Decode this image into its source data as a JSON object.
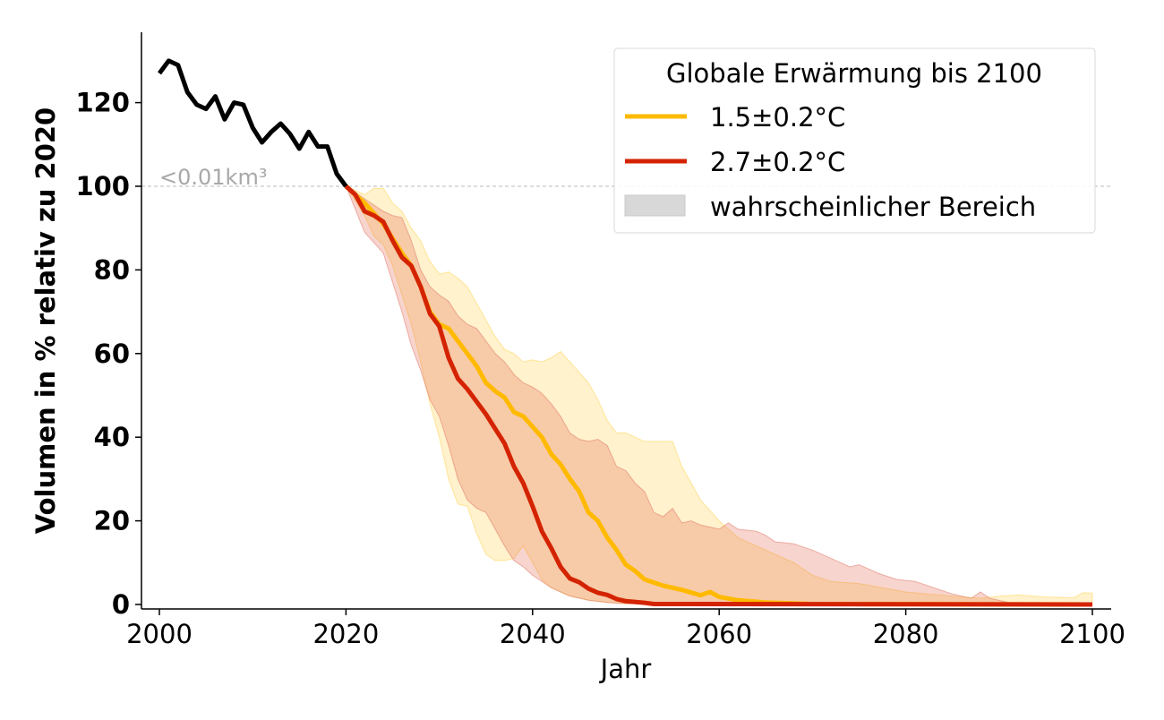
{
  "chart_data": {
    "type": "line",
    "title": "",
    "xlabel": "Jahr",
    "ylabel": "Volumen in % relativ zu 2020",
    "xlim": [
      1998,
      2102
    ],
    "ylim": [
      -1,
      137
    ],
    "xticks": [
      2000,
      2020,
      2040,
      2060,
      2080,
      2100
    ],
    "yticks": [
      0,
      20,
      40,
      60,
      80,
      100,
      120
    ],
    "grid": false,
    "legend": {
      "title": "Globale Erwärmung bis 2100",
      "placement": "top-right",
      "entries": [
        "1.5±0.2°C",
        "2.7±0.2°C",
        "wahrscheinlicher Bereich"
      ]
    },
    "reference_line": {
      "y": 100,
      "label": "<0.01km³",
      "color": "#aaaaaa"
    },
    "colors": {
      "historical": "#000000",
      "s15": "#FFBA00",
      "s27": "#D42300",
      "range": "#d8d8d8"
    },
    "historical": {
      "x": [
        2000,
        2001,
        2002,
        2003,
        2004,
        2005,
        2006,
        2007,
        2008,
        2009,
        2010,
        2011,
        2012,
        2013,
        2014,
        2015,
        2016,
        2017,
        2018,
        2019,
        2020
      ],
      "y": [
        127,
        130,
        129,
        122.5,
        119.5,
        118.5,
        121.5,
        116,
        120,
        119.5,
        114,
        110.5,
        113,
        115,
        112.5,
        109,
        113,
        109.5,
        109.5,
        103,
        100
      ]
    },
    "series": [
      {
        "name": "1.5±0.2°C",
        "median": {
          "x": [
            2020,
            2022,
            2024,
            2026,
            2027,
            2028,
            2029,
            2030,
            2031,
            2032,
            2034,
            2035,
            2036,
            2037,
            2038,
            2039,
            2040,
            2041,
            2042,
            2043,
            2044,
            2045,
            2046,
            2047,
            2048,
            2049,
            2050,
            2051,
            2052,
            2054,
            2056,
            2058,
            2059,
            2060,
            2062,
            2065,
            2070,
            2100
          ],
          "y": [
            100,
            96,
            91,
            84,
            81,
            76,
            70,
            67,
            66,
            63,
            57,
            53,
            51,
            49.5,
            46,
            45,
            42.5,
            40,
            36,
            33.5,
            30,
            27,
            22,
            20,
            16,
            13,
            9.5,
            8,
            6,
            4.5,
            3.5,
            2.2,
            3,
            1.8,
            1,
            0.5,
            0.1,
            0
          ]
        },
        "upper": {
          "x": [
            2020,
            2022,
            2023,
            2024,
            2025,
            2026,
            2027,
            2028,
            2029,
            2030,
            2031,
            2032,
            2033,
            2034,
            2035,
            2036,
            2037,
            2038,
            2039,
            2040,
            2041,
            2042,
            2043,
            2044,
            2045,
            2046,
            2047,
            2048,
            2049,
            2050,
            2051,
            2052,
            2053,
            2055,
            2056,
            2058,
            2060,
            2062,
            2064,
            2066,
            2068,
            2070,
            2072,
            2075,
            2080,
            2085,
            2088,
            2090,
            2092,
            2095,
            2098,
            2099,
            2100
          ],
          "y": [
            100,
            98,
            99.5,
            99.5,
            96,
            94,
            90,
            87,
            82,
            79,
            79.5,
            78,
            76,
            72,
            68,
            64,
            61,
            60,
            58,
            58.5,
            58,
            59,
            60.5,
            58,
            55.5,
            53,
            49,
            44,
            41,
            41,
            40,
            39,
            39,
            39,
            33,
            25,
            20,
            16,
            14,
            12,
            10,
            7,
            5.5,
            5,
            3,
            2,
            1.5,
            2,
            2.3,
            1.8,
            1.6,
            2.8,
            2.7
          ]
        },
        "lower": {
          "x": [
            2020,
            2022,
            2023,
            2024,
            2025,
            2026,
            2027,
            2028,
            2029,
            2030,
            2031,
            2032,
            2033,
            2034,
            2035,
            2036,
            2037,
            2038,
            2039,
            2040,
            2041,
            2042,
            2044,
            2046,
            2048,
            2050,
            2100
          ],
          "y": [
            100,
            93,
            88,
            86,
            81,
            74,
            67,
            58,
            48,
            40,
            30,
            24,
            23.5,
            17,
            12,
            10.5,
            10.5,
            11,
            14,
            10,
            6,
            4,
            2,
            1,
            0.5,
            0.2,
            0
          ]
        }
      },
      {
        "name": "2.7±0.2°C",
        "median": {
          "x": [
            2020,
            2021,
            2022,
            2023,
            2024,
            2025,
            2026,
            2027,
            2028,
            2029,
            2030,
            2031,
            2032,
            2033,
            2034,
            2035,
            2036,
            2037,
            2038,
            2039,
            2040,
            2041,
            2042,
            2043,
            2044,
            2045,
            2046,
            2047,
            2048,
            2049,
            2050,
            2052,
            2053,
            2100
          ],
          "y": [
            100,
            98,
            94,
            93,
            91.5,
            87,
            83,
            81,
            76,
            69.5,
            66.5,
            59,
            54,
            51.5,
            48.5,
            45.5,
            42,
            38.5,
            33,
            29,
            23.5,
            17.5,
            13.5,
            9,
            6.2,
            5.3,
            3.8,
            2.8,
            2.3,
            1.3,
            0.8,
            0.4,
            0.1,
            0
          ]
        },
        "upper": {
          "x": [
            2020,
            2022,
            2024,
            2025,
            2026,
            2027,
            2028,
            2029,
            2030,
            2031,
            2032,
            2033,
            2034,
            2035,
            2036,
            2037,
            2038,
            2039,
            2040,
            2041,
            2042,
            2043,
            2044,
            2045,
            2046,
            2047,
            2048,
            2049,
            2050,
            2051,
            2052,
            2053,
            2054,
            2055,
            2056,
            2057,
            2058,
            2060,
            2061,
            2062,
            2064,
            2065,
            2066,
            2068,
            2070,
            2072,
            2074,
            2075,
            2077,
            2079,
            2081,
            2083,
            2085,
            2087,
            2088,
            2089,
            2091,
            2093,
            2100
          ],
          "y": [
            100,
            97,
            94,
            93,
            92.5,
            87,
            80,
            76,
            74,
            72.5,
            69,
            67,
            66,
            63,
            60,
            58,
            55,
            53,
            52,
            50.5,
            48,
            45,
            41,
            39.5,
            39,
            39.5,
            38,
            33,
            32,
            29,
            27,
            22,
            21,
            23,
            19.5,
            20,
            19,
            18,
            19.5,
            18,
            17.5,
            16.5,
            15,
            14.5,
            13,
            11,
            9,
            9.5,
            7.5,
            6,
            5.5,
            4,
            2.5,
            1.5,
            3,
            1.5,
            0.5,
            0.2,
            0
          ]
        },
        "lower": {
          "x": [
            2020,
            2022,
            2024,
            2025,
            2026,
            2027,
            2028,
            2029,
            2030,
            2031,
            2032,
            2033,
            2034,
            2035,
            2036,
            2037,
            2038,
            2039,
            2040,
            2042,
            2044,
            2046,
            2048,
            2050,
            2100
          ],
          "y": [
            100,
            89,
            84,
            77,
            70,
            62,
            56,
            49,
            45,
            38,
            30,
            25,
            23,
            22,
            18,
            14,
            10.5,
            9,
            7,
            4,
            2,
            1,
            0.5,
            0.2,
            0
          ]
        }
      }
    ]
  }
}
